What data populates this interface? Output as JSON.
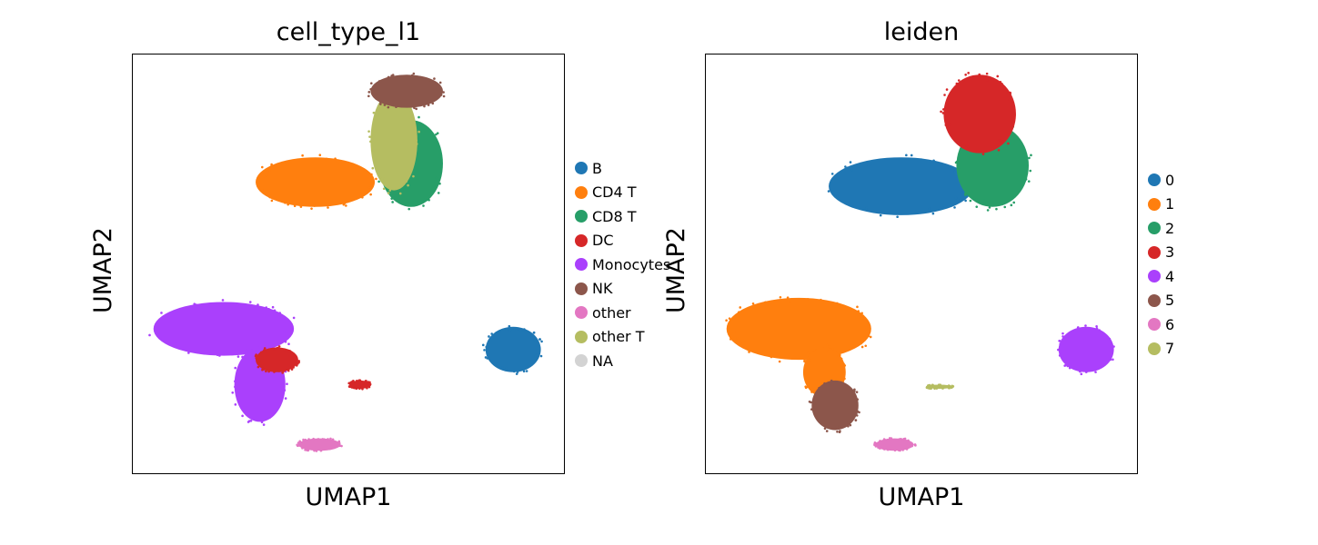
{
  "chart_data": [
    {
      "type": "scatter",
      "title": "cell_type_l1",
      "xlabel": "UMAP1",
      "ylabel": "UMAP2",
      "legend_position": "right",
      "grid": false,
      "legend": [
        {
          "name": "B",
          "color": "#1f77b4"
        },
        {
          "name": "CD4 T",
          "color": "#ff7f0e"
        },
        {
          "name": "CD8 T",
          "color": "#279e68"
        },
        {
          "name": "DC",
          "color": "#d62728"
        },
        {
          "name": "Monocytes",
          "color": "#aa40fc"
        },
        {
          "name": "NK",
          "color": "#8c564b"
        },
        {
          "name": "other",
          "color": "#e377c2"
        },
        {
          "name": "other T",
          "color": "#b5bd61"
        },
        {
          "name": "NA",
          "color": "#d3d3d3"
        }
      ],
      "clusters": [
        {
          "series": "CD4 T",
          "x": [
            0.28,
            0.56
          ],
          "y": [
            0.64,
            0.76
          ]
        },
        {
          "series": "CD8 T",
          "x": [
            0.57,
            0.72
          ],
          "y": [
            0.64,
            0.85
          ]
        },
        {
          "series": "other T",
          "x": [
            0.55,
            0.66
          ],
          "y": [
            0.68,
            0.92
          ]
        },
        {
          "series": "NK",
          "x": [
            0.55,
            0.72
          ],
          "y": [
            0.88,
            0.96
          ]
        },
        {
          "series": "Monocytes",
          "x": [
            0.04,
            0.37
          ],
          "y": [
            0.28,
            0.41
          ]
        },
        {
          "series": "Monocytes",
          "x": [
            0.23,
            0.35
          ],
          "y": [
            0.12,
            0.3
          ]
        },
        {
          "series": "DC",
          "x": [
            0.28,
            0.38
          ],
          "y": [
            0.24,
            0.3
          ]
        },
        {
          "series": "DC",
          "x": [
            0.5,
            0.55
          ],
          "y": [
            0.2,
            0.22
          ]
        },
        {
          "series": "other",
          "x": [
            0.38,
            0.48
          ],
          "y": [
            0.05,
            0.08
          ]
        },
        {
          "series": "B",
          "x": [
            0.82,
            0.95
          ],
          "y": [
            0.24,
            0.35
          ]
        }
      ]
    },
    {
      "type": "scatter",
      "title": "leiden",
      "xlabel": "UMAP1",
      "ylabel": "UMAP2",
      "legend_position": "right",
      "grid": false,
      "legend": [
        {
          "name": "0",
          "color": "#1f77b4"
        },
        {
          "name": "1",
          "color": "#ff7f0e"
        },
        {
          "name": "2",
          "color": "#279e68"
        },
        {
          "name": "3",
          "color": "#d62728"
        },
        {
          "name": "4",
          "color": "#aa40fc"
        },
        {
          "name": "5",
          "color": "#8c564b"
        },
        {
          "name": "6",
          "color": "#e377c2"
        },
        {
          "name": "7",
          "color": "#b5bd61"
        }
      ],
      "clusters": [
        {
          "series": "0",
          "x": [
            0.28,
            0.62
          ],
          "y": [
            0.62,
            0.76
          ]
        },
        {
          "series": "2",
          "x": [
            0.58,
            0.75
          ],
          "y": [
            0.64,
            0.84
          ]
        },
        {
          "series": "3",
          "x": [
            0.55,
            0.72
          ],
          "y": [
            0.77,
            0.96
          ]
        },
        {
          "series": "1",
          "x": [
            0.04,
            0.38
          ],
          "y": [
            0.27,
            0.42
          ]
        },
        {
          "series": "1",
          "x": [
            0.22,
            0.32
          ],
          "y": [
            0.18,
            0.3
          ]
        },
        {
          "series": "5",
          "x": [
            0.24,
            0.35
          ],
          "y": [
            0.1,
            0.22
          ]
        },
        {
          "series": "6",
          "x": [
            0.39,
            0.48
          ],
          "y": [
            0.05,
            0.08
          ]
        },
        {
          "series": "7",
          "x": [
            0.51,
            0.57
          ],
          "y": [
            0.2,
            0.21
          ]
        },
        {
          "series": "4",
          "x": [
            0.82,
            0.95
          ],
          "y": [
            0.24,
            0.35
          ]
        }
      ]
    }
  ]
}
